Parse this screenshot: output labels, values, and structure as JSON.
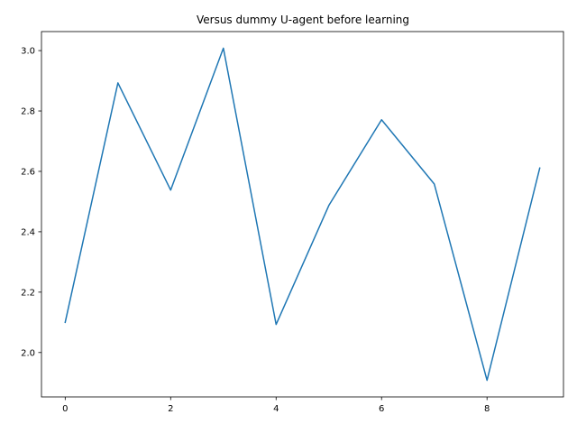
{
  "chart_data": {
    "type": "line",
    "title": "Versus dummy U-agent before learning",
    "xlabel": "",
    "ylabel": "",
    "x": [
      0,
      1,
      2,
      3,
      4,
      5,
      6,
      7,
      8,
      9
    ],
    "series": [
      {
        "values": [
          2.1,
          2.893,
          2.538,
          3.008,
          2.093,
          2.487,
          2.771,
          2.558,
          1.908,
          2.611
        ],
        "color": "#1f77b4"
      }
    ],
    "xlim": [
      -0.45,
      9.45
    ],
    "ylim": [
      1.853,
      3.063
    ],
    "xticks": [
      0,
      2,
      4,
      6,
      8
    ],
    "yticks": [
      2.0,
      2.2,
      2.4,
      2.6,
      2.8,
      3.0
    ],
    "xtick_labels": [
      "0",
      "2",
      "4",
      "6",
      "8"
    ],
    "ytick_labels": [
      "2.0",
      "2.2",
      "2.4",
      "2.6",
      "2.8",
      "3.0"
    ],
    "grid": false,
    "legend": "none"
  }
}
